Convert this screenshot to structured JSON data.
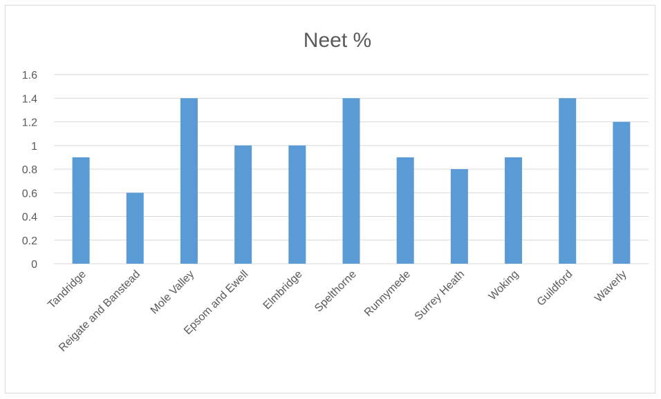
{
  "chart_data": {
    "type": "bar",
    "title": "Neet %",
    "categories": [
      "Tandridge",
      "Reigate and Banstead",
      "Mole Valley",
      "Epsom and Ewell",
      "Elmbridge",
      "Spelthorne",
      "Runnymede",
      "Surrey Heath",
      "Woking",
      "Guildford",
      "Waverly"
    ],
    "values": [
      0.9,
      0.6,
      1.4,
      1.0,
      1.0,
      1.4,
      0.9,
      0.8,
      0.9,
      1.4,
      1.2
    ],
    "yticks": [
      "0",
      "0.2",
      "0.4",
      "0.6",
      "0.8",
      "1",
      "1.2",
      "1.4",
      "1.6"
    ],
    "ylim": [
      0,
      1.6
    ],
    "grid": true,
    "legend": "none",
    "colors": {
      "bar": "#5b9bd5",
      "grid": "#d9d9d9",
      "text": "#595959"
    }
  }
}
